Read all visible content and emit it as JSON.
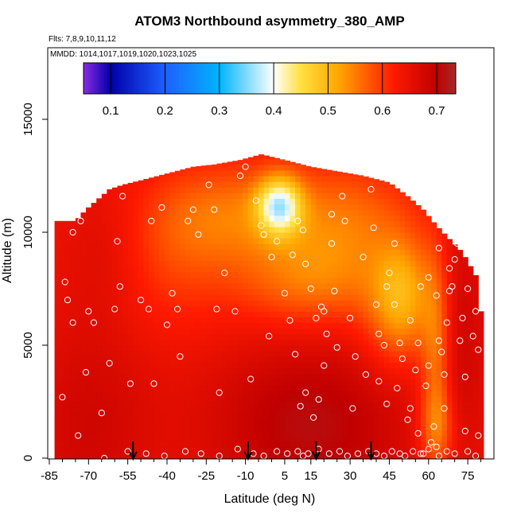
{
  "chart_data": {
    "type": "heatmap",
    "title": "ATOM3 Northbound asymmetry_380_AMP",
    "flights_label": "Flts: 7,8,9,10,11,12",
    "mmdd_label": "MMDD: 1014,1017,1019,1020,1023,1025",
    "xlabel": "Latitude (deg N)",
    "ylabel": "Altitude (m)",
    "xlim": [
      -85,
      85
    ],
    "ylim": [
      0,
      17500
    ],
    "x_ticks": [
      -85,
      -70,
      -55,
      -40,
      -25,
      -10,
      5,
      15,
      30,
      45,
      60,
      75
    ],
    "x_tick_labels": [
      "-85",
      "-70",
      "-55",
      "-40",
      "-25",
      "-10",
      "5",
      "15",
      "30",
      "45",
      "60",
      "75"
    ],
    "x_minor_ticks": [
      -80,
      -75,
      -65,
      -60,
      -50,
      -45,
      -35,
      -30,
      -20,
      -15,
      -5,
      0,
      10,
      20,
      25,
      35,
      40,
      50,
      55,
      65,
      70,
      80
    ],
    "y_ticks": [
      0,
      5000,
      10000,
      15000
    ],
    "y_tick_labels": [
      "0",
      "5000",
      "10000",
      "15000"
    ],
    "colorbar": {
      "range": [
        0.05,
        0.735
      ],
      "ticks": [
        0.1,
        0.2,
        0.3,
        0.4,
        0.5,
        0.6,
        0.7
      ],
      "tick_labels": [
        "0.1",
        "0.2",
        "0.3",
        "0.4",
        "0.5",
        "0.6",
        "0.7"
      ],
      "colors": [
        "#8a2be2",
        "#0000a8",
        "#1e5fff",
        "#00b4ff",
        "#ffffff",
        "#ffe040",
        "#ffa500",
        "#ff0000",
        "#b00000",
        "#a52a2a"
      ]
    },
    "colormap_stops": [
      {
        "v": 0.05,
        "c": "#8a2be2"
      },
      {
        "v": 0.1,
        "c": "#0000a8"
      },
      {
        "v": 0.2,
        "c": "#1e5fff"
      },
      {
        "v": 0.3,
        "c": "#00b4ff"
      },
      {
        "v": 0.4,
        "c": "#ffffff"
      },
      {
        "v": 0.45,
        "c": "#ffe040"
      },
      {
        "v": 0.52,
        "c": "#ffa500"
      },
      {
        "v": 0.62,
        "c": "#ff1a00"
      },
      {
        "v": 0.7,
        "c": "#c00000"
      },
      {
        "v": 0.735,
        "c": "#a52a2a"
      }
    ],
    "top_profile": [
      [
        -83,
        10500
      ],
      [
        -75,
        10500
      ],
      [
        -71,
        11000
      ],
      [
        -66,
        11500
      ],
      [
        -62,
        11900
      ],
      [
        -57,
        12100
      ],
      [
        -50,
        12300
      ],
      [
        -40,
        12600
      ],
      [
        -30,
        12900
      ],
      [
        -22,
        13000
      ],
      [
        -12,
        13200
      ],
      [
        -4,
        13450
      ],
      [
        5,
        13200
      ],
      [
        15,
        12900
      ],
      [
        25,
        12700
      ],
      [
        35,
        12500
      ],
      [
        45,
        12200
      ],
      [
        52,
        11600
      ],
      [
        58,
        11000
      ],
      [
        63,
        10300
      ],
      [
        68,
        9700
      ],
      [
        73,
        9100
      ],
      [
        78,
        8100
      ],
      [
        80,
        6500
      ]
    ],
    "field_base": 0.64,
    "field_features": [
      {
        "x": 15,
        "y": 1500,
        "sx": 28,
        "sy": 2800,
        "a": 0.07
      },
      {
        "x": -70,
        "y": 1500,
        "sx": 18,
        "sy": 3500,
        "a": 0.04
      },
      {
        "x": 3,
        "y": 11200,
        "sx": 6,
        "sy": 900,
        "a": -0.2
      },
      {
        "x": -15,
        "y": 10800,
        "sx": 22,
        "sy": 1600,
        "a": -0.08
      },
      {
        "x": 30,
        "y": 10500,
        "sx": 18,
        "sy": 1800,
        "a": -0.07
      },
      {
        "x": 15,
        "y": 7800,
        "sx": 20,
        "sy": 1500,
        "a": -0.08
      },
      {
        "x": 50,
        "y": 7500,
        "sx": 8,
        "sy": 1600,
        "a": -0.1
      },
      {
        "x": 48,
        "y": 5600,
        "sx": 10,
        "sy": 1600,
        "a": -0.05
      },
      {
        "x": 63,
        "y": 4500,
        "sx": 4,
        "sy": 3200,
        "a": -0.09
      },
      {
        "x": 63,
        "y": 1400,
        "sx": 5,
        "sy": 1200,
        "a": -0.07
      },
      {
        "x": -40,
        "y": 8500,
        "sx": 18,
        "sy": 2200,
        "a": -0.04
      },
      {
        "x": -62,
        "y": 9200,
        "sx": 12,
        "sy": 2200,
        "a": 0.03
      },
      {
        "x": 72,
        "y": 6000,
        "sx": 8,
        "sy": 4000,
        "a": 0.04
      }
    ],
    "obs_points": [
      [
        -74,
        1
      ],
      [
        -76,
        6
      ],
      [
        -78,
        7
      ],
      [
        -76,
        10
      ],
      [
        -73,
        10.5
      ],
      [
        -70,
        6.5
      ],
      [
        -68,
        6
      ],
      [
        -65,
        2
      ],
      [
        -64,
        0
      ],
      [
        -57,
        11.6
      ],
      [
        -59,
        9.6
      ],
      [
        -60,
        6.6
      ],
      [
        -58,
        7.6
      ],
      [
        -54,
        3.3
      ],
      [
        -50,
        7
      ],
      [
        -47,
        6.6
      ],
      [
        -46,
        10.5
      ],
      [
        -42,
        11.1
      ],
      [
        -40,
        5.9
      ],
      [
        -38,
        7.3
      ],
      [
        -36,
        6.6
      ],
      [
        -35,
        4.5
      ],
      [
        -32,
        10.5
      ],
      [
        -30,
        11
      ],
      [
        -28,
        9.9
      ],
      [
        -24,
        12.1
      ],
      [
        -22,
        11
      ],
      [
        -21,
        6.6
      ],
      [
        -18,
        8.2
      ],
      [
        -14,
        6.5
      ],
      [
        -12,
        12.5
      ],
      [
        -10,
        12.9
      ],
      [
        -6,
        11.4
      ],
      [
        -4,
        10.3
      ],
      [
        -2,
        13.6
      ],
      [
        0,
        13.7
      ],
      [
        -3,
        9.9
      ],
      [
        0,
        8.9
      ],
      [
        2,
        9.6
      ],
      [
        5,
        7.3
      ],
      [
        7,
        6.1
      ],
      [
        8,
        9
      ],
      [
        10,
        10.5
      ],
      [
        12,
        10.1
      ],
      [
        13,
        8.6
      ],
      [
        15,
        7.5
      ],
      [
        17,
        6.2
      ],
      [
        19,
        6.7
      ],
      [
        21,
        5.5
      ],
      [
        23,
        10.8
      ],
      [
        23,
        9.5
      ],
      [
        20,
        6.5
      ],
      [
        24,
        7.4
      ],
      [
        26,
        12.9
      ],
      [
        27,
        11.6
      ],
      [
        28,
        10.5
      ],
      [
        30,
        6.2
      ],
      [
        32,
        4.5
      ],
      [
        35,
        8.9
      ],
      [
        38,
        11.9
      ],
      [
        39,
        10.2
      ],
      [
        40,
        6.8
      ],
      [
        41,
        5.5
      ],
      [
        43,
        5
      ],
      [
        44,
        7.6
      ],
      [
        45,
        8.2
      ],
      [
        47,
        9.5
      ],
      [
        47,
        6.8
      ],
      [
        49,
        5.1
      ],
      [
        50,
        4.4
      ],
      [
        52,
        1.7
      ],
      [
        53,
        6.1
      ],
      [
        55,
        3.9
      ],
      [
        56,
        5.1
      ],
      [
        57,
        7.6
      ],
      [
        59,
        3.2
      ],
      [
        60,
        8
      ],
      [
        60,
        4.1
      ],
      [
        61,
        0.7
      ],
      [
        62,
        1.4
      ],
      [
        63,
        0.5
      ],
      [
        63,
        7.2
      ],
      [
        64,
        5.2
      ],
      [
        64,
        9.3
      ],
      [
        65,
        4.7
      ],
      [
        66,
        3.7
      ],
      [
        66,
        2.2
      ],
      [
        67,
        6
      ],
      [
        68,
        7.4
      ],
      [
        68,
        8.4
      ],
      [
        69,
        7.6
      ],
      [
        70,
        8.8
      ],
      [
        71,
        9.5
      ],
      [
        72,
        5.2
      ],
      [
        73,
        6.2
      ],
      [
        74,
        3.6
      ],
      [
        74,
        1.2
      ],
      [
        75,
        7.5
      ],
      [
        76,
        9.4
      ],
      [
        77,
        5.4
      ],
      [
        78,
        6.5
      ],
      [
        79,
        4.8
      ],
      [
        79,
        1
      ],
      [
        -80,
        2.7
      ],
      [
        -79,
        7.8
      ],
      [
        -45,
        3.3
      ],
      [
        -20,
        2.9
      ],
      [
        -8,
        3.5
      ],
      [
        -1,
        5.4
      ],
      [
        9,
        4.6
      ],
      [
        11,
        2.3
      ],
      [
        13,
        2.9
      ],
      [
        16,
        1.8
      ],
      [
        18,
        2.6
      ],
      [
        20,
        4.1
      ],
      [
        25,
        4.9
      ],
      [
        31,
        2.2
      ],
      [
        36,
        3.7
      ],
      [
        41,
        3.4
      ],
      [
        44,
        2.4
      ],
      [
        48,
        3.1
      ],
      [
        53,
        2.2
      ],
      [
        56,
        1.1
      ],
      [
        58,
        0.2
      ],
      [
        -71,
        3.8
      ],
      [
        -62,
        4.2
      ],
      [
        -55,
        0.3
      ],
      [
        -48,
        0.2
      ],
      [
        -41,
        0.1
      ],
      [
        -33,
        0.3
      ],
      [
        -27,
        0.2
      ],
      [
        -20,
        0.1
      ],
      [
        -13,
        0.4
      ],
      [
        -7,
        0.2
      ],
      [
        -3,
        0.1
      ],
      [
        2,
        0.3
      ],
      [
        6,
        0.2
      ],
      [
        10,
        0.3
      ],
      [
        12,
        0.1
      ],
      [
        14,
        0.2
      ],
      [
        18,
        0.4
      ],
      [
        22,
        0.2
      ],
      [
        26,
        0.3
      ],
      [
        29,
        0.1
      ],
      [
        33,
        0.2
      ],
      [
        37,
        0.3
      ],
      [
        40,
        0.2
      ],
      [
        43,
        0.1
      ],
      [
        46,
        0.3
      ],
      [
        49,
        0.2
      ],
      [
        51,
        0.1
      ],
      [
        54,
        0.3
      ],
      [
        57,
        0.2
      ],
      [
        60,
        0.4
      ],
      [
        64,
        0.1
      ],
      [
        67,
        0.3
      ],
      [
        70,
        0.2
      ],
      [
        75,
        0.3
      ],
      [
        78,
        0.1
      ]
    ],
    "obs_points_units": "x: latitude (deg N), y: altitude (km)",
    "arrows_x": [
      -53,
      -9,
      17,
      38
    ]
  }
}
